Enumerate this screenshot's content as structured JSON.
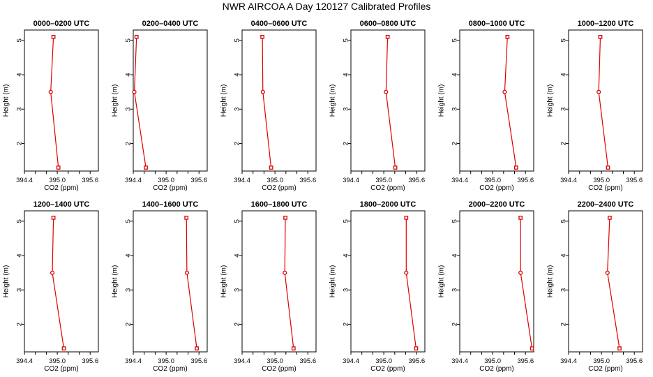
{
  "title": "NWR AIRCOA A   Day 120127   Calibrated Profiles",
  "chart_data": {
    "type": "line",
    "title": "NWR AIRCOA A   Day 120127   Calibrated Profiles",
    "xlabel": "CO2 (ppm)",
    "ylabel": "Height (m)",
    "xlim": [
      394.4,
      395.75
    ],
    "ylim": [
      1.2,
      5.3
    ],
    "xticks": [
      394.4,
      394.6,
      394.8,
      395.0,
      395.2,
      395.4,
      395.6
    ],
    "xtick_labels": [
      "394.4",
      "395.0",
      "395.6"
    ],
    "yticks": [
      2,
      3,
      4,
      5
    ],
    "heights": [
      5.1,
      3.5,
      1.3
    ],
    "color": "#dd0000",
    "panels": [
      {
        "name": "0000–0200 UTC",
        "co2": [
          394.93,
          394.88,
          395.02
        ]
      },
      {
        "name": "0200–0400 UTC",
        "co2": [
          394.46,
          394.42,
          394.63
        ]
      },
      {
        "name": "0400–0600 UTC",
        "co2": [
          394.77,
          394.78,
          394.93
        ]
      },
      {
        "name": "0600–0800 UTC",
        "co2": [
          395.07,
          395.04,
          395.21
        ]
      },
      {
        "name": "0800–1000 UTC",
        "co2": [
          395.27,
          395.22,
          395.43
        ]
      },
      {
        "name": "1000–1200 UTC",
        "co2": [
          394.98,
          394.95,
          395.12
        ]
      },
      {
        "name": "1200–1400 UTC",
        "co2": [
          394.93,
          394.91,
          395.12
        ]
      },
      {
        "name": "1400–1600 UTC",
        "co2": [
          395.37,
          395.38,
          395.56
        ]
      },
      {
        "name": "1600–1800 UTC",
        "co2": [
          395.19,
          395.18,
          395.34
        ]
      },
      {
        "name": "1800–2000 UTC",
        "co2": [
          395.41,
          395.41,
          395.59
        ]
      },
      {
        "name": "2000–2200 UTC",
        "co2": [
          395.51,
          395.51,
          395.72
        ]
      },
      {
        "name": "2200–2400 UTC",
        "co2": [
          395.15,
          395.11,
          395.33
        ]
      }
    ]
  }
}
